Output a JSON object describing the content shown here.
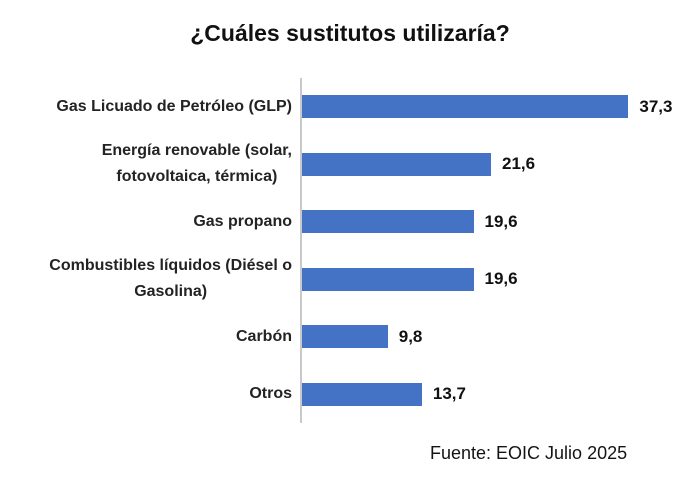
{
  "title": "¿Cuáles sustitutos utilizaría?",
  "source": "Fuente: EOIC Julio 2025",
  "colors": {
    "bar": "#4472C4",
    "axis_line": "#c9c9c9",
    "text": "#111111"
  },
  "chart_data": {
    "type": "bar",
    "orientation": "horizontal",
    "title": "¿Cuáles sustitutos utilizaría?",
    "categories": [
      "Gas Licuado de Petróleo (GLP)",
      "Energía renovable (solar, fotovoltaica, térmica)",
      "Gas propano",
      "Combustibles líquidos (Diésel o Gasolina)",
      "Carbón",
      "Otros"
    ],
    "categories_wrapped": [
      "Gas Licuado de Petróleo (GLP)",
      "Energía renovable (solar,\nfotovoltaica, térmica)",
      "Gas propano",
      "Combustibles líquidos (Diésel o\nGasolina)",
      "Carbón",
      "Otros"
    ],
    "values": [
      37.3,
      21.6,
      19.6,
      19.6,
      9.8,
      13.7
    ],
    "value_labels": [
      "37,3",
      "21,6",
      "19,6",
      "19,6",
      "9,8",
      "13,7"
    ],
    "xlabel": "",
    "ylabel": "",
    "xlim": [
      0,
      40
    ],
    "grid": false,
    "legend": false,
    "source": "Fuente: EOIC Julio 2025"
  }
}
